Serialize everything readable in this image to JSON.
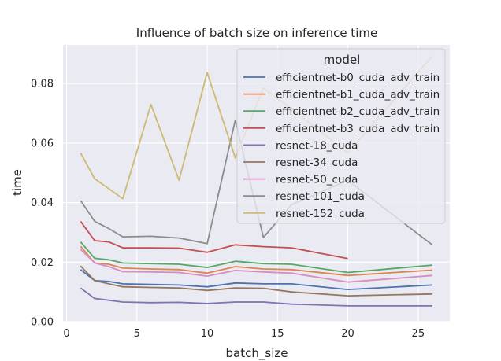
{
  "chart_data": {
    "type": "line",
    "title": "Influence of batch size on inference time",
    "xlabel": "batch_size",
    "ylabel": "time",
    "xlim": [
      -0.25,
      27.25
    ],
    "ylim": [
      0,
      0.093
    ],
    "xticks": [
      0,
      5,
      10,
      15,
      20,
      25
    ],
    "xtick_labels": [
      "0",
      "5",
      "10",
      "15",
      "20",
      "25"
    ],
    "yticks": [
      0.0,
      0.02,
      0.04,
      0.06,
      0.08
    ],
    "ytick_labels": [
      "0.00",
      "0.02",
      "0.04",
      "0.06",
      "0.08"
    ],
    "grid": true,
    "legend_title": "model",
    "legend_position": "upper right",
    "series": [
      {
        "name": "efficientnet-b0_cuda_adv_train",
        "color": "#4c72b0",
        "x": [
          1,
          2,
          3,
          4,
          6,
          8,
          10,
          12,
          14,
          16,
          20,
          26
        ],
        "y": [
          0.0175,
          0.0138,
          0.0135,
          0.0127,
          0.0125,
          0.0123,
          0.0117,
          0.013,
          0.0127,
          0.0127,
          0.0108,
          0.0123
        ]
      },
      {
        "name": "efficientnet-b1_cuda_adv_train",
        "color": "#dd8452",
        "x": [
          1,
          2,
          3,
          4,
          6,
          8,
          10,
          12,
          14,
          16,
          20,
          26
        ],
        "y": [
          0.0253,
          0.0197,
          0.0193,
          0.018,
          0.0177,
          0.0175,
          0.0163,
          0.0185,
          0.0177,
          0.0175,
          0.0155,
          0.0173
        ]
      },
      {
        "name": "efficientnet-b2_cuda_adv_train",
        "color": "#55a868",
        "x": [
          1,
          2,
          3,
          4,
          6,
          8,
          10,
          12,
          14,
          16,
          20,
          26
        ],
        "y": [
          0.0268,
          0.0213,
          0.0208,
          0.0197,
          0.0195,
          0.0193,
          0.0182,
          0.0203,
          0.0195,
          0.0193,
          0.0165,
          0.019
        ]
      },
      {
        "name": "efficientnet-b3_cuda_adv_train",
        "color": "#c44e52",
        "x": [
          1,
          2,
          3,
          4,
          6,
          8,
          10,
          12,
          14,
          16,
          20
        ],
        "y": [
          0.0337,
          0.0272,
          0.0268,
          0.0248,
          0.0248,
          0.0247,
          0.0233,
          0.0258,
          0.0252,
          0.0248,
          0.0212
        ]
      },
      {
        "name": "resnet-18_cuda",
        "color": "#8172b3",
        "x": [
          1,
          2,
          3,
          4,
          6,
          8,
          10,
          12,
          14,
          16,
          20,
          26
        ],
        "y": [
          0.0113,
          0.0078,
          0.0072,
          0.0066,
          0.0064,
          0.0065,
          0.0061,
          0.0066,
          0.0066,
          0.0059,
          0.0053,
          0.0053
        ]
      },
      {
        "name": "resnet-34_cuda",
        "color": "#937860",
        "x": [
          1,
          2,
          3,
          4,
          6,
          8,
          10,
          12,
          14,
          16,
          20,
          26
        ],
        "y": [
          0.0187,
          0.0138,
          0.0127,
          0.0117,
          0.0115,
          0.0113,
          0.0105,
          0.0113,
          0.0112,
          0.01,
          0.0087,
          0.0093
        ]
      },
      {
        "name": "resnet-50_cuda",
        "color": "#da8bc3",
        "x": [
          1,
          2,
          3,
          4,
          6,
          8,
          10,
          12,
          14,
          16,
          20,
          26
        ],
        "y": [
          0.0243,
          0.0197,
          0.0185,
          0.0168,
          0.0167,
          0.0165,
          0.0153,
          0.0172,
          0.0167,
          0.0163,
          0.0133,
          0.0155
        ]
      },
      {
        "name": "resnet-101_cuda",
        "color": "#8c8c8c",
        "x": [
          1,
          2,
          3,
          4,
          6,
          8,
          10,
          12,
          14,
          16,
          20,
          26
        ],
        "y": [
          0.0407,
          0.0337,
          0.0313,
          0.0285,
          0.0287,
          0.0281,
          0.0262,
          0.0677,
          0.0283,
          0.0393,
          0.0475,
          0.0258
        ]
      },
      {
        "name": "resnet-152_cuda",
        "color": "#ccb974",
        "x": [
          1,
          2,
          3,
          4,
          6,
          8,
          10,
          12,
          14,
          16,
          20,
          26
        ],
        "y": [
          0.0567,
          0.048,
          0.0447,
          0.0413,
          0.073,
          0.0475,
          0.0837,
          0.055,
          0.0785,
          0.0715,
          0.0567,
          0.0892
        ]
      }
    ]
  },
  "colors": {
    "plot_background": "#eaeaf2",
    "grid": "#ffffff",
    "legend_background": "#eaeaf2",
    "legend_border": "#cccccc"
  }
}
